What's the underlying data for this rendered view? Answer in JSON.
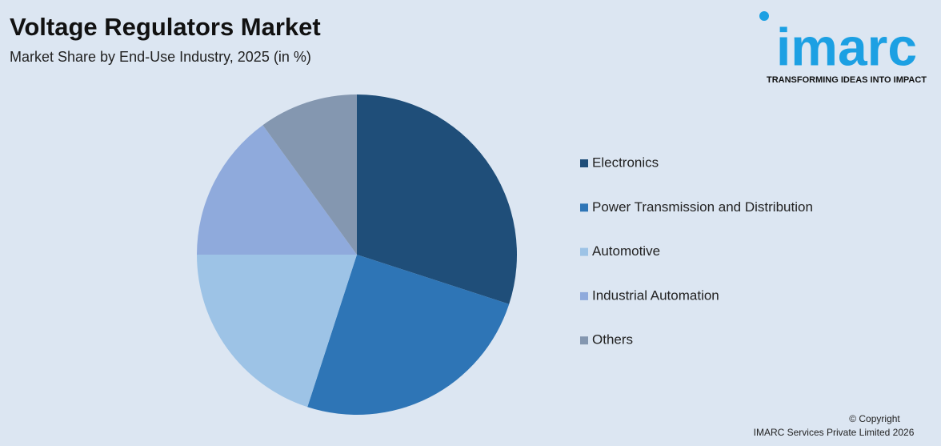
{
  "chart_data": {
    "type": "pie",
    "title": "Voltage Regulators Market",
    "subtitle": "Market Share by End-Use Industry, 2025 (in %)",
    "categories": [
      "Electronics",
      "Power Transmission and Distribution",
      "Automotive",
      "Industrial Automation",
      "Others"
    ],
    "values": [
      30,
      25,
      20,
      15,
      10
    ],
    "colors": [
      "#1f4e79",
      "#2e75b6",
      "#9dc3e6",
      "#8faadc",
      "#8497b0"
    ],
    "legend": "right"
  },
  "logo": {
    "name": "imarc",
    "tagline": "TRANSFORMING IDEAS INTO IMPACT"
  },
  "footer": {
    "copyright": "© Copyright",
    "owner": "IMARC Services Private Limited 2026"
  }
}
